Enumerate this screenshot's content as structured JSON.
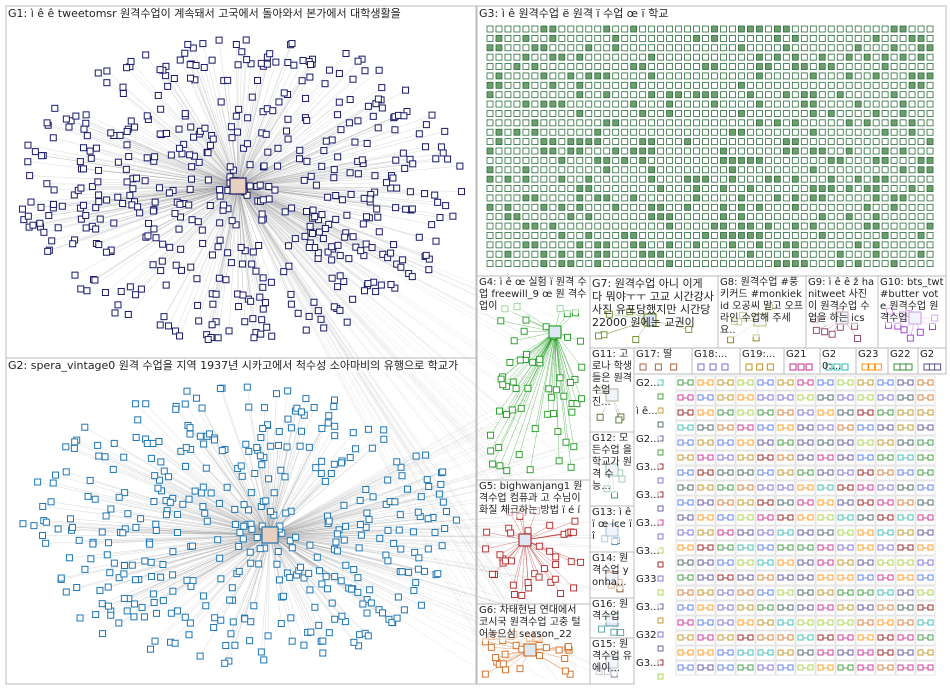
{
  "groups": [
    {
      "id": "G1",
      "label": "G1: ì ê ê tweetomsr 원격수업이 계속돼서 고국에서 돌아와서 본가에서 대학생활을",
      "color": "#1a1a6b"
    },
    {
      "id": "G2",
      "label": "G2: spera_vintage0 원격 수업을 지역 1937년 시카고에서 척수성 소아마비의 유행으로 학교가",
      "color": "#1f77b4"
    },
    {
      "id": "G3",
      "label": "G3: ì ê 원격수업 ë 원격 ï 수업 œ ï 학교",
      "color": "#2a6e3a"
    },
    {
      "id": "G4",
      "label": "G4: ì ê œ 실험 ï 원격 수업 freewill_9 œ 원 격수업이",
      "color": "#1a9a1a"
    },
    {
      "id": "G5",
      "label": "G5: bighwanjang1 원격수업 컴퓨과 고 수님이 화질 체크하는 방법 ï é í",
      "color": "#b22222"
    },
    {
      "id": "G6",
      "label": "G6: 차태현님 연대에서 코시국 원격수업 고충 털어놓으심 season_22",
      "color": "#d2691e"
    },
    {
      "id": "G7",
      "label": "G7: 원격수업 아니 이게 다 뭐야ㅜㅜ 고교 시간강사 사진 유포당했지만 시간당22000 원에는 교권이",
      "color": "#6b8e23"
    },
    {
      "id": "G8",
      "label": "G8: 원격수업 #풍 키커드 #monkiekid 오공씨 말고 오프라인 수업해 주세요..",
      "color": "#808000"
    },
    {
      "id": "G9",
      "label": "G9: ì ê ê ž hanitweet 사진이 원격수업 수업을 하는 ics",
      "color": "#8b3a62"
    },
    {
      "id": "G10",
      "label": "G10: bts_twt #butter vote 원격수업 원격수업",
      "color": "#9932cc"
    },
    {
      "id": "G11",
      "label": "G11: 고로나 학생들은 원격수업 진...",
      "color": "#556b2f"
    },
    {
      "id": "G12",
      "label": "G12: 모든수업 을 학교가 원격 수능...",
      "color": "#2e8b57"
    },
    {
      "id": "G13",
      "label": "G13: ì ê ï œ ice ï î",
      "color": "#4682b4"
    },
    {
      "id": "G14",
      "label": "G14: 원격수업 yonha...",
      "color": "#8b4513"
    },
    {
      "id": "G15",
      "label": "G15: 원격수업 유에이...",
      "color": "#708090"
    },
    {
      "id": "G16",
      "label": "G16: 원격수업",
      "color": "#5f9ea0"
    },
    {
      "id": "G17",
      "label": "G17: 딸",
      "color": "#a0522d"
    },
    {
      "id": "G18",
      "label": "G18:...",
      "color": "#6a5acd"
    },
    {
      "id": "G19",
      "label": "G19:...",
      "color": "#b8860b"
    },
    {
      "id": "G21",
      "label": "G21",
      "color": "#c71585"
    },
    {
      "id": "G20",
      "label": "G20:...",
      "color": "#20b2aa"
    },
    {
      "id": "G23",
      "label": "G23",
      "color": "#ff8c00"
    },
    {
      "id": "G22",
      "label": "G22",
      "color": "#228b22"
    },
    {
      "id": "G2x",
      "label": "G2",
      "color": "#483d8b"
    }
  ],
  "tiny_labels": [
    "G2...",
    "ì ê...",
    "G2...",
    "G3...",
    "G3...",
    "G3...",
    "G3...",
    "G33",
    "G3...",
    "G32",
    "G3..."
  ]
}
